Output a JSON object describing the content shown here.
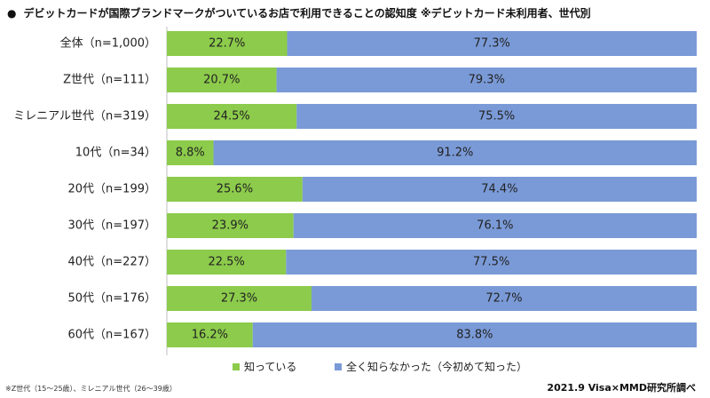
{
  "title": "デビットカードが国際ブランドマークがついているお店で利用できることの認知度 ※デビットカード未利用者、世代別",
  "bullet": "●",
  "footnote": "※Z世代（15〜25歳）、ミレニアル世代（26〜39歳）",
  "source": "2021.9 Visa×MMD研究所調べ",
  "colors": {
    "known": "#8ccb4b",
    "unknown": "#7a9ad7"
  },
  "chart_data": {
    "type": "bar",
    "orientation": "horizontal",
    "stacked": true,
    "percent": true,
    "categories": [
      "全体（n=1,000）",
      "Z世代（n=111）",
      "ミレニアル世代（n=319）",
      "10代（n=34）",
      "20代（n=199）",
      "30代（n=197）",
      "40代（n=227）",
      "50代（n=176）",
      "60代（n=167）"
    ],
    "series": [
      {
        "name": "知っている",
        "values": [
          22.7,
          20.7,
          24.5,
          8.8,
          25.6,
          23.9,
          22.5,
          27.3,
          16.2
        ],
        "labels": [
          "22.7%",
          "20.7%",
          "24.5%",
          "8.8%",
          "25.6%",
          "23.9%",
          "22.5%",
          "27.3%",
          "16.2%"
        ]
      },
      {
        "name": "全く知らなかった（今初めて知った）",
        "values": [
          77.3,
          79.3,
          75.5,
          91.2,
          74.4,
          76.1,
          77.5,
          72.7,
          83.8
        ],
        "labels": [
          "77.3%",
          "79.3%",
          "75.5%",
          "91.2%",
          "74.4%",
          "76.1%",
          "77.5%",
          "72.7%",
          "83.8%"
        ]
      }
    ],
    "xlim": [
      0,
      100
    ],
    "legend": "bottom"
  }
}
